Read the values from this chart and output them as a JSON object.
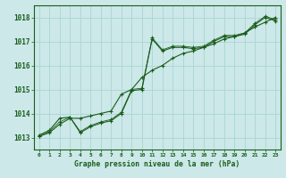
{
  "title": "Graphe pression niveau de la mer (hPa)",
  "x_labels": [
    0,
    1,
    2,
    3,
    4,
    5,
    6,
    7,
    8,
    9,
    10,
    11,
    12,
    13,
    14,
    15,
    16,
    17,
    18,
    19,
    20,
    21,
    22,
    23
  ],
  "xlim": [
    -0.5,
    23.5
  ],
  "ylim": [
    1012.5,
    1018.5
  ],
  "yticks": [
    1013,
    1014,
    1015,
    1016,
    1017,
    1018
  ],
  "background_color": "#cce8e8",
  "grid_color": "#aad4d4",
  "line_color": "#1a5c1a",
  "text_color": "#1a5c1a",
  "series1": [
    1013.1,
    1013.3,
    1013.8,
    1013.85,
    1013.2,
    1013.45,
    1013.6,
    1013.7,
    1014.0,
    1014.95,
    1015.0,
    1017.1,
    1016.6,
    1016.75,
    1016.75,
    1016.7,
    1016.75,
    1017.0,
    1017.2,
    1017.2,
    1017.3,
    1017.7,
    1018.0,
    1017.85
  ],
  "series2": [
    1013.05,
    1013.2,
    1013.55,
    1013.8,
    1013.8,
    1013.9,
    1014.0,
    1014.1,
    1014.8,
    1015.0,
    1015.5,
    1015.8,
    1016.0,
    1016.3,
    1016.5,
    1016.6,
    1016.75,
    1016.9,
    1017.1,
    1017.2,
    1017.35,
    1017.6,
    1017.8,
    1018.0
  ],
  "series3": [
    1013.05,
    1013.25,
    1013.65,
    1013.85,
    1013.25,
    1013.5,
    1013.65,
    1013.75,
    1014.05,
    1015.0,
    1015.05,
    1017.15,
    1016.65,
    1016.8,
    1016.8,
    1016.75,
    1016.8,
    1017.05,
    1017.25,
    1017.25,
    1017.35,
    1017.75,
    1018.05,
    1017.9
  ]
}
